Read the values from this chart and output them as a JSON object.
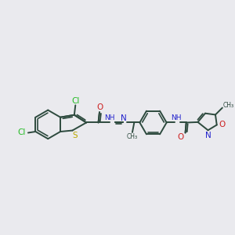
{
  "bg_color": "#eaeaee",
  "bond_color": "#2d4a3e",
  "N_color": "#2222cc",
  "O_color": "#cc2020",
  "S_color": "#bbaa00",
  "Cl_color": "#22bb22",
  "lw": 1.4,
  "fs": 7.0,
  "xlim": [
    0.0,
    10.0
  ],
  "ylim": [
    3.5,
    7.8
  ]
}
